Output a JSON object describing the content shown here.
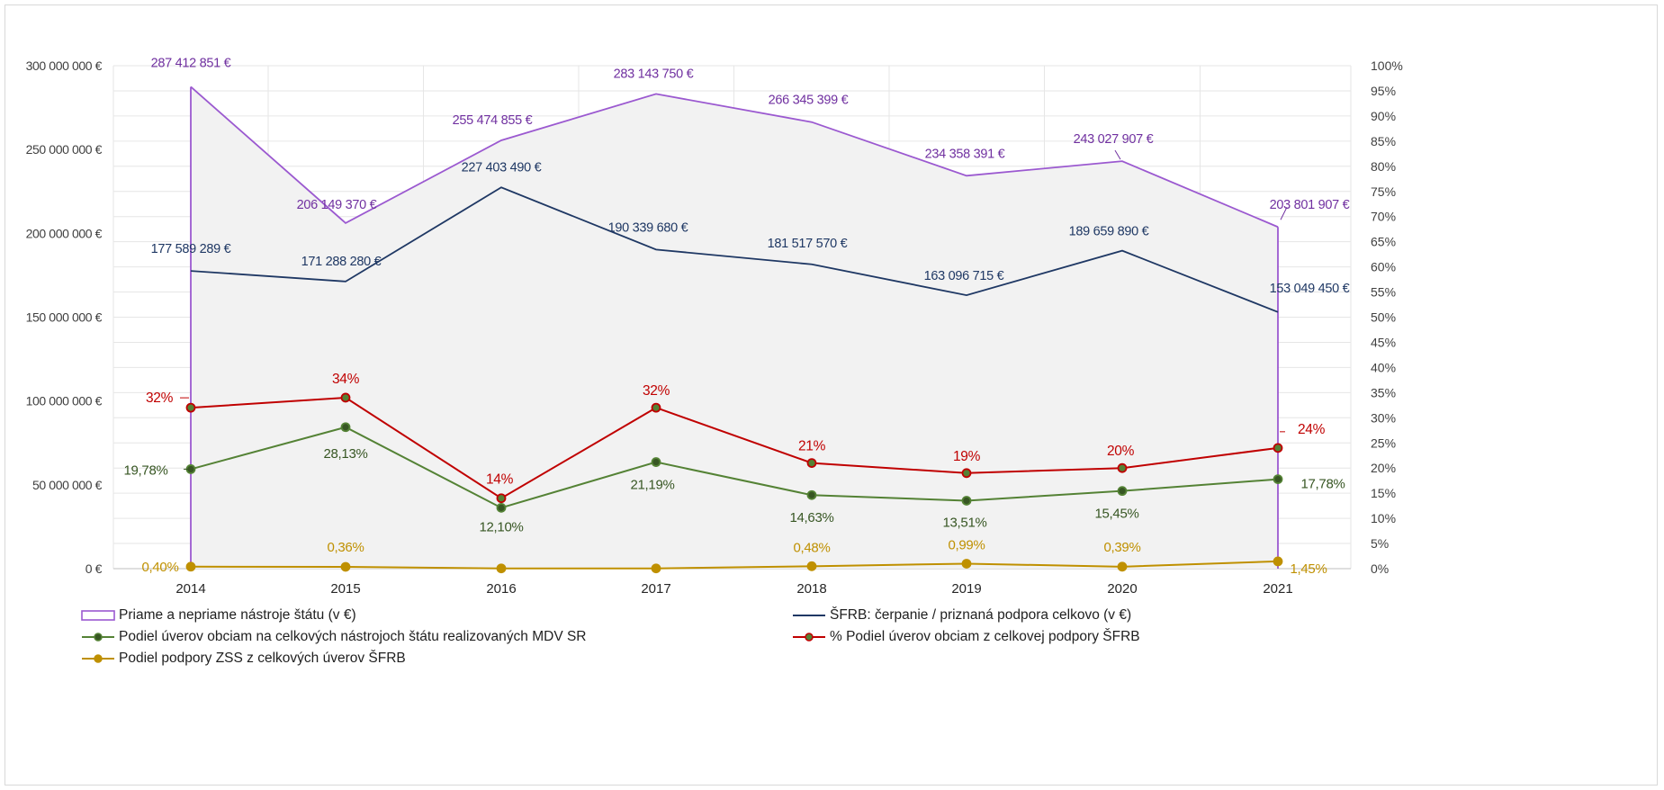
{
  "chart_data": {
    "type": "line",
    "title": "",
    "categories": [
      "2014",
      "2015",
      "2016",
      "2017",
      "2018",
      "2019",
      "2020",
      "2021"
    ],
    "y_left": {
      "min": 0,
      "max": 300000000,
      "step": 50000000,
      "tick_labels": [
        "0 €",
        "50 000 000 €",
        "100 000 000 €",
        "150 000 000 €",
        "200 000 000 €",
        "250 000 000 €",
        "300 000 000 €"
      ]
    },
    "y_right": {
      "min": 0,
      "max": 100,
      "step": 5,
      "tick_labels": [
        "0%",
        "5%",
        "10%",
        "15%",
        "20%",
        "25%",
        "30%",
        "35%",
        "40%",
        "45%",
        "50%",
        "55%",
        "60%",
        "65%",
        "70%",
        "75%",
        "80%",
        "85%",
        "90%",
        "95%",
        "100%"
      ]
    },
    "grid": true,
    "legend_position": "bottom",
    "series": [
      {
        "id": "priame",
        "name": "Priame a nepriame nástroje štátu (v €)",
        "axis": "left",
        "style": "area",
        "color": "#9b59d0",
        "fill": "#f2f2f2",
        "values": [
          287412851,
          206149370,
          255474855,
          283143750,
          266345399,
          234358391,
          243027907,
          203801907
        ],
        "labels": [
          "287 412 851 €",
          "206 149 370 €",
          "255 474 855 €",
          "283 143 750 €",
          "266 345 399 €",
          "234 358 391 €",
          "243 027 907 €",
          "203 801 907 €"
        ],
        "label_color": "#7030a0"
      },
      {
        "id": "sfrb",
        "name": "ŠFRB: čerpanie / priznaná podpora celkovo (v €)",
        "axis": "left",
        "style": "line",
        "color": "#1f3864",
        "values": [
          177589289,
          171288280,
          227403490,
          190339680,
          181517570,
          163096715,
          189659890,
          153049450
        ],
        "labels": [
          "177 589 289 €",
          "171 288 280 €",
          "227 403 490 €",
          "190 339 680 €",
          "181 517 570 €",
          "163 096 715 €",
          "189 659 890 €",
          "153 049 450 €"
        ],
        "label_color": "#1f3864"
      },
      {
        "id": "podiel_obce",
        "name": "Podiel úverov obciam na celkových nástrojoch štátu realizovaných MDV SR",
        "axis": "right",
        "style": "line-marker",
        "color": "#548235",
        "values": [
          19.78,
          28.13,
          12.1,
          21.19,
          14.63,
          13.51,
          15.45,
          17.78
        ],
        "labels": [
          "19,78%",
          "28,13%",
          "12,10%",
          "21,19%",
          "14,63%",
          "13,51%",
          "15,45%",
          "17,78%"
        ],
        "label_color": "#375623"
      },
      {
        "id": "podiel_sfrb",
        "name": "% Podiel úverov obciam z celkovej podpory ŠFRB",
        "axis": "right",
        "style": "line-marker",
        "color": "#c00000",
        "values": [
          32,
          34,
          14,
          32,
          21,
          19,
          20,
          24
        ],
        "labels": [
          "32%",
          "34%",
          "14%",
          "32%",
          "21%",
          "19%",
          "20%",
          "24%"
        ],
        "label_color": "#c00000"
      },
      {
        "id": "zss",
        "name": "Podiel podpory ZSS z celkových úverov ŠFRB",
        "axis": "right",
        "style": "line-marker",
        "color": "#bf9000",
        "values": [
          0.4,
          0.36,
          0.05,
          0.05,
          0.48,
          0.99,
          0.39,
          1.45
        ],
        "labels": [
          "0,40%",
          "0,36%",
          "",
          "",
          "0,48%",
          "0,99%",
          "0,39%",
          "1,45%"
        ],
        "label_color": "#bf9000"
      }
    ]
  }
}
